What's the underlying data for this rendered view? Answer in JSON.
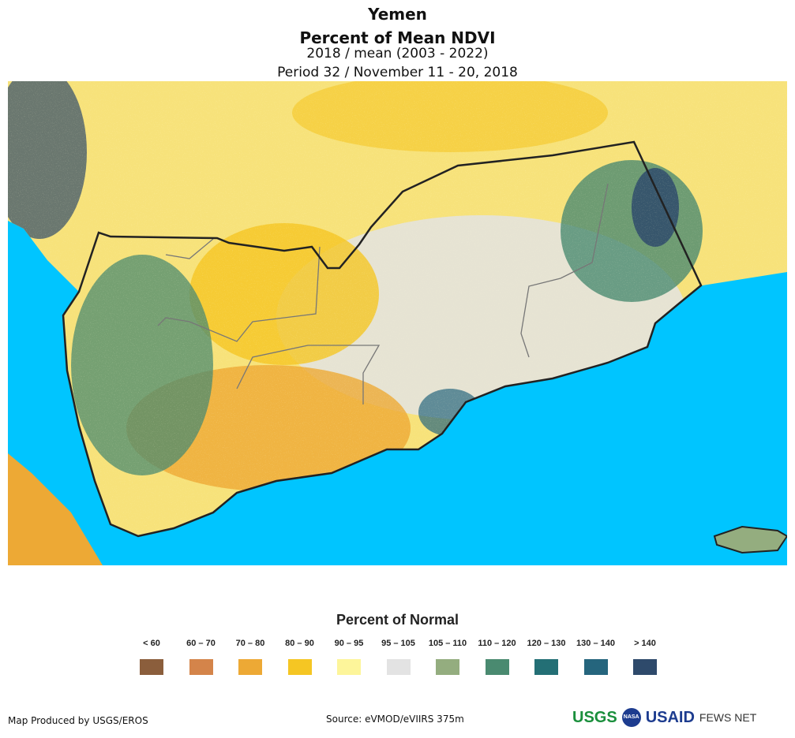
{
  "header": {
    "title": "Yemen",
    "subtitle": "Percent of Mean NDVI",
    "comparison": "2018 / mean (2003 - 2022)",
    "period": "Period 32 / November 11 - 20, 2018"
  },
  "legend": {
    "title": "Percent of Normal",
    "items": [
      {
        "label": "< 60",
        "color": "#8B5E3C"
      },
      {
        "label": "60 – 70",
        "color": "#D4844A"
      },
      {
        "label": "70 – 80",
        "color": "#EDA935"
      },
      {
        "label": "80 – 90",
        "color": "#F5C623"
      },
      {
        "label": "90 – 95",
        "color": "#FDF59A"
      },
      {
        "label": "95 – 105",
        "color": "#E3E3E3"
      },
      {
        "label": "105 – 110",
        "color": "#94AD7F"
      },
      {
        "label": "110 – 120",
        "color": "#4A8A70"
      },
      {
        "label": "120 – 130",
        "color": "#236F75"
      },
      {
        "label": "130 – 140",
        "color": "#25657D"
      },
      {
        "label": "> 140",
        "color": "#2E4A6B"
      }
    ]
  },
  "footer": {
    "credit": "Map Produced by USGS/EROS",
    "source": "Source: eVMOD/eVIIRS 375m",
    "logos": [
      "USGS",
      "NASA",
      "USAID",
      "FEWS NET"
    ]
  },
  "colors": {
    "sea": "#00C5FF",
    "land": "#F7E27A"
  }
}
